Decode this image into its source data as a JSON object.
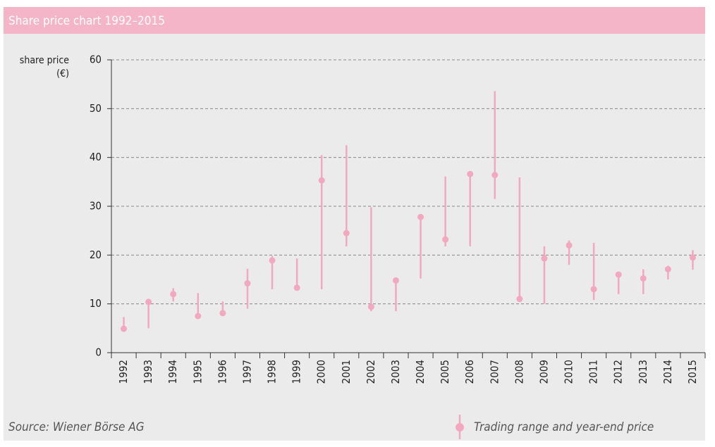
{
  "chart_data": {
    "type": "range",
    "title": "Share price chart 1992–2015",
    "ylabel": [
      "share price",
      "(€)"
    ],
    "source": "Source: Wiener Börse AG",
    "legend": "Trading range and year-end price",
    "color": "#f2a9bf",
    "categories": [
      "1992",
      "1993",
      "1994",
      "1995",
      "1996",
      "1997",
      "1998",
      "1999",
      "2000",
      "2001",
      "2002",
      "2003",
      "2004",
      "2005",
      "2006",
      "2007",
      "2008",
      "2009",
      "2010",
      "2011",
      "2012",
      "2013",
      "2014",
      "2015"
    ],
    "low": [
      4.8,
      5,
      10.5,
      7,
      7.5,
      9,
      13,
      13,
      13,
      21.8,
      8.5,
      8.5,
      15.2,
      21.8,
      21.8,
      31.5,
      10.5,
      10,
      18,
      10.8,
      12,
      12,
      15,
      17
    ],
    "high": [
      7.3,
      10.5,
      13.2,
      12.2,
      10.5,
      17.2,
      19.8,
      19.3,
      40.5,
      42.5,
      29.8,
      15,
      28,
      36.1,
      37,
      53.6,
      35.9,
      21.8,
      23,
      22.5,
      16.3,
      17.1,
      17.8,
      21
    ],
    "values": [
      4.9,
      10.4,
      12,
      7.5,
      8.1,
      14.2,
      18.9,
      13.3,
      35.3,
      24.5,
      9.4,
      14.8,
      27.8,
      23.2,
      36.6,
      36.4,
      11,
      19.3,
      22,
      13,
      16,
      15.2,
      17.1,
      19.5
    ],
    "ylim": [
      0,
      60
    ],
    "yticks": [
      0,
      10,
      20,
      30,
      40,
      50,
      60
    ],
    "grid": true
  }
}
